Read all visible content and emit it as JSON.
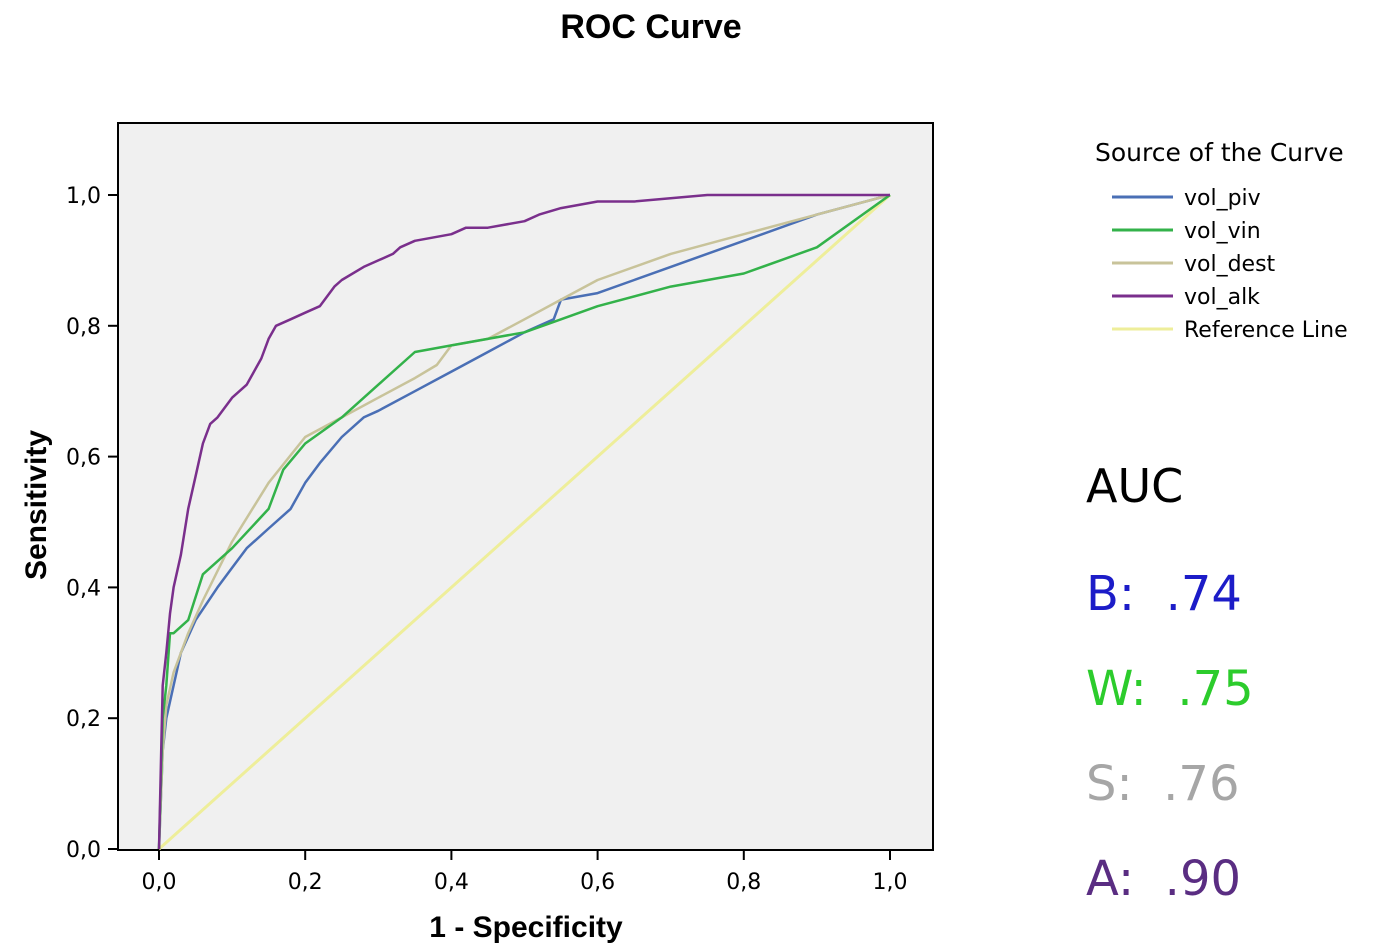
{
  "chart_data": {
    "type": "line",
    "title": "ROC Curve",
    "xlabel": "1 - Specificity",
    "ylabel": "Sensitivity",
    "xlim": [
      0,
      1
    ],
    "ylim": [
      0,
      1
    ],
    "x_ticks": [
      "0,0",
      "0,2",
      "0,4",
      "0,6",
      "0,8",
      "1,0"
    ],
    "y_ticks": [
      "0,0",
      "0,2",
      "0,4",
      "0,6",
      "0,8",
      "1,0"
    ],
    "grid": false,
    "legend": {
      "title": "Source of the Curve",
      "placement": "right"
    },
    "series": [
      {
        "name": "vol_piv",
        "color": "#4a6fb5",
        "x": [
          0,
          0.005,
          0.01,
          0.02,
          0.03,
          0.05,
          0.08,
          0.1,
          0.12,
          0.15,
          0.18,
          0.2,
          0.22,
          0.25,
          0.28,
          0.3,
          0.35,
          0.4,
          0.45,
          0.5,
          0.54,
          0.55,
          0.6,
          0.65,
          0.7,
          0.8,
          0.9,
          1.0
        ],
        "y": [
          0,
          0.15,
          0.2,
          0.25,
          0.3,
          0.35,
          0.4,
          0.43,
          0.46,
          0.49,
          0.52,
          0.56,
          0.59,
          0.63,
          0.66,
          0.67,
          0.7,
          0.73,
          0.76,
          0.79,
          0.81,
          0.84,
          0.85,
          0.87,
          0.89,
          0.93,
          0.97,
          1.0
        ]
      },
      {
        "name": "vol_vin",
        "color": "#33b24a",
        "x": [
          0,
          0.005,
          0.01,
          0.015,
          0.02,
          0.04,
          0.06,
          0.1,
          0.15,
          0.17,
          0.2,
          0.25,
          0.3,
          0.35,
          0.4,
          0.5,
          0.55,
          0.6,
          0.7,
          0.8,
          0.85,
          0.9,
          1.0
        ],
        "y": [
          0,
          0.2,
          0.25,
          0.33,
          0.33,
          0.35,
          0.42,
          0.46,
          0.52,
          0.58,
          0.62,
          0.66,
          0.71,
          0.76,
          0.77,
          0.79,
          0.81,
          0.83,
          0.86,
          0.88,
          0.9,
          0.92,
          1.0
        ]
      },
      {
        "name": "vol_dest",
        "color": "#c8c39a",
        "x": [
          0,
          0.005,
          0.01,
          0.02,
          0.04,
          0.06,
          0.1,
          0.15,
          0.2,
          0.25,
          0.3,
          0.35,
          0.38,
          0.4,
          0.45,
          0.5,
          0.55,
          0.6,
          0.7,
          0.8,
          0.9,
          1.0
        ],
        "y": [
          0,
          0.15,
          0.22,
          0.27,
          0.33,
          0.38,
          0.47,
          0.56,
          0.63,
          0.66,
          0.69,
          0.72,
          0.74,
          0.77,
          0.78,
          0.81,
          0.84,
          0.87,
          0.91,
          0.94,
          0.97,
          1.0
        ]
      },
      {
        "name": "vol_alk",
        "color": "#7a2f8c",
        "x": [
          0,
          0.003,
          0.005,
          0.01,
          0.015,
          0.02,
          0.03,
          0.04,
          0.05,
          0.06,
          0.07,
          0.08,
          0.1,
          0.12,
          0.14,
          0.15,
          0.16,
          0.18,
          0.2,
          0.22,
          0.24,
          0.25,
          0.28,
          0.3,
          0.32,
          0.33,
          0.35,
          0.4,
          0.42,
          0.45,
          0.5,
          0.52,
          0.55,
          0.6,
          0.65,
          0.75,
          1.0
        ],
        "y": [
          0,
          0.15,
          0.25,
          0.3,
          0.36,
          0.4,
          0.45,
          0.52,
          0.57,
          0.62,
          0.65,
          0.66,
          0.69,
          0.71,
          0.75,
          0.78,
          0.8,
          0.81,
          0.82,
          0.83,
          0.86,
          0.87,
          0.89,
          0.9,
          0.91,
          0.92,
          0.93,
          0.94,
          0.95,
          0.95,
          0.96,
          0.97,
          0.98,
          0.99,
          0.99,
          1.0,
          1.0
        ]
      },
      {
        "name": "Reference Line",
        "color": "#eeee9a",
        "x": [
          0,
          1
        ],
        "y": [
          0,
          1
        ]
      }
    ]
  },
  "auc_panel": {
    "heading": "AUC",
    "items": [
      {
        "label": "B:  .74",
        "color": "#1c1cc8"
      },
      {
        "label": "W:  .75",
        "color": "#2ccc2c"
      },
      {
        "label": "S:  .76",
        "color": "#a6a6a6"
      },
      {
        "label": "A:  .90",
        "color": "#5a2d82"
      }
    ]
  }
}
